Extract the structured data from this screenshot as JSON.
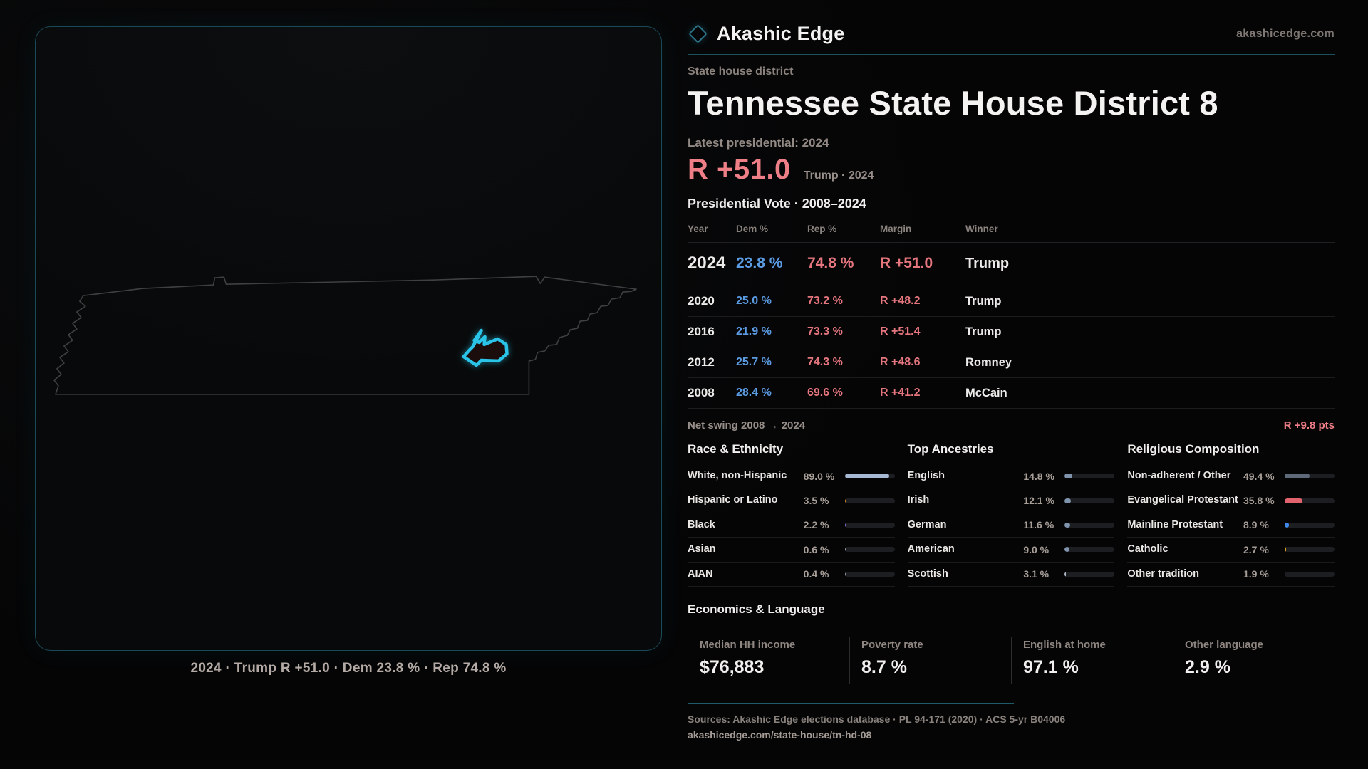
{
  "brand": {
    "name": "Akashic Edge",
    "site": "akashicedge.com"
  },
  "map": {
    "caption": "2024 · Trump R +51.0 · Dem 23.8 % · Rep 74.8 %"
  },
  "header": {
    "kicker": "State house district",
    "title": "Tennessee State House District 8"
  },
  "latest": {
    "label": "Latest presidential: 2024",
    "margin": "R +51.0",
    "winner_note": "Trump · 2024"
  },
  "vote_table": {
    "title": "Presidential Vote · 2008–2024",
    "columns": [
      "Year",
      "Dem %",
      "Rep %",
      "Margin",
      "Winner"
    ],
    "rows": [
      {
        "year": "2024",
        "dem": "23.8 %",
        "rep": "74.8 %",
        "margin": "R +51.0",
        "winner": "Trump",
        "emphasis": true
      },
      {
        "year": "2020",
        "dem": "25.0 %",
        "rep": "73.2 %",
        "margin": "R +48.2",
        "winner": "Trump",
        "emphasis": false
      },
      {
        "year": "2016",
        "dem": "21.9 %",
        "rep": "73.3 %",
        "margin": "R +51.4",
        "winner": "Trump",
        "emphasis": false
      },
      {
        "year": "2012",
        "dem": "25.7 %",
        "rep": "74.3 %",
        "margin": "R +48.6",
        "winner": "Romney",
        "emphasis": false
      },
      {
        "year": "2008",
        "dem": "28.4 %",
        "rep": "69.6 %",
        "margin": "R +41.2",
        "winner": "McCain",
        "emphasis": false
      }
    ]
  },
  "net_swing": {
    "label": "Net swing 2008 → 2024",
    "value": "R +9.8 pts"
  },
  "demographics": [
    {
      "title": "Race & Ethnicity",
      "rows": [
        {
          "label": "White, non-Hispanic",
          "value": "89.0 %",
          "pct": 89.0,
          "color": "#a7b8d4"
        },
        {
          "label": "Hispanic or Latino",
          "value": "3.5 %",
          "pct": 3.5,
          "color": "#e89b2e"
        },
        {
          "label": "Black",
          "value": "2.2 %",
          "pct": 2.2,
          "color": "#8f7ae0"
        },
        {
          "label": "Asian",
          "value": "0.6 %",
          "pct": 0.6,
          "color": "#9aa0a8"
        },
        {
          "label": "AIAN",
          "value": "0.4 %",
          "pct": 0.4,
          "color": "#9aa0a8"
        }
      ]
    },
    {
      "title": "Top Ancestries",
      "rows": [
        {
          "label": "English",
          "value": "14.8 %",
          "pct": 14.8,
          "color": "#7f93ad"
        },
        {
          "label": "Irish",
          "value": "12.1 %",
          "pct": 12.1,
          "color": "#7f93ad"
        },
        {
          "label": "German",
          "value": "11.6 %",
          "pct": 11.6,
          "color": "#7f93ad"
        },
        {
          "label": "American",
          "value": "9.0 %",
          "pct": 9.0,
          "color": "#7f93ad"
        },
        {
          "label": "Scottish",
          "value": "3.1 %",
          "pct": 3.1,
          "color": "#aeb6c2"
        }
      ]
    },
    {
      "title": "Religious Composition",
      "rows": [
        {
          "label": "Non-adherent / Other",
          "value": "49.4 %",
          "pct": 49.4,
          "color": "#5d6878"
        },
        {
          "label": "Evangelical Protestant",
          "value": "35.8 %",
          "pct": 35.8,
          "color": "#e0636e"
        },
        {
          "label": "Mainline Protestant",
          "value": "8.9 %",
          "pct": 8.9,
          "color": "#3f87e8"
        },
        {
          "label": "Catholic",
          "value": "2.7 %",
          "pct": 2.7,
          "color": "#d9a31f"
        },
        {
          "label": "Other tradition",
          "value": "1.9 %",
          "pct": 1.9,
          "color": "#9aa0a8"
        }
      ]
    }
  ],
  "economics": {
    "title": "Economics & Language",
    "stats": [
      {
        "label": "Median HH income",
        "value": "$76,883"
      },
      {
        "label": "Poverty rate",
        "value": "8.7 %"
      },
      {
        "label": "English at home",
        "value": "97.1 %"
      },
      {
        "label": "Other language",
        "value": "2.9 %"
      }
    ]
  },
  "footer": {
    "sources": "Sources: Akashic Edge elections database · PL 94-171 (2020) · ACS 5-yr B04006",
    "permalink": "akashicedge.com/state-house/tn-hd-08"
  },
  "colors": {
    "accent_teal": "#1c505d",
    "margin_red": "#ee7f86",
    "dem_blue": "#5b9be2",
    "rep_red": "#e6767e",
    "district_cyan": "#2ac4e8"
  }
}
